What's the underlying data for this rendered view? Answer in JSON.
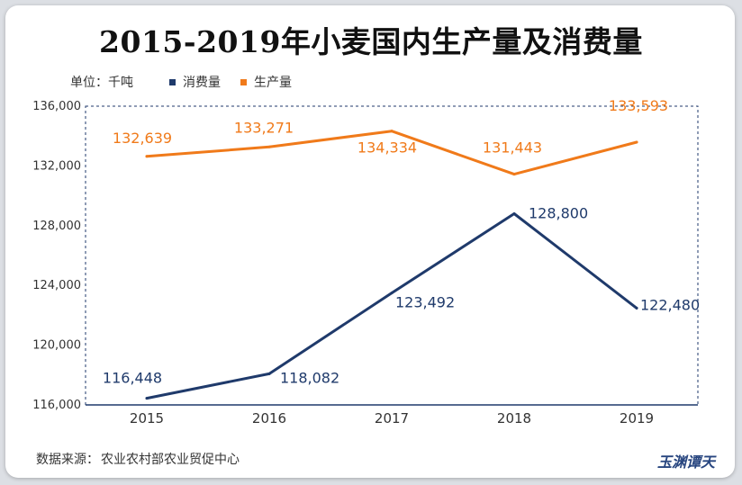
{
  "title": "2015-2019年小麦国内生产量及消费量",
  "legend": {
    "unit": "单位：千吨",
    "items": [
      {
        "label": "消费量",
        "color": "#1f3a6b"
      },
      {
        "label": "生产量",
        "color": "#f07a1a"
      }
    ]
  },
  "source": {
    "label": "数据来源：",
    "text": "农业农村部农业贸促中心"
  },
  "watermark": "玉渊谭天",
  "chart_data": {
    "type": "line",
    "x": [
      "2015",
      "2016",
      "2017",
      "2018",
      "2019"
    ],
    "ylim": [
      116000,
      136000
    ],
    "yticks": [
      116000,
      120000,
      124000,
      128000,
      132000,
      136000
    ],
    "ytick_labels": [
      "116,000",
      "120,000",
      "124,000",
      "128,000",
      "132,000",
      "136,000"
    ],
    "grid": false,
    "series": [
      {
        "name": "生产量",
        "color": "#f07a1a",
        "values": [
          132639,
          133271,
          134334,
          131443,
          133593
        ],
        "labels": [
          "132,639",
          "133,271",
          "134,334",
          "131,443",
          "133,593"
        ]
      },
      {
        "name": "消费量",
        "color": "#1f3a6b",
        "values": [
          116448,
          118082,
          123492,
          128800,
          122480
        ],
        "labels": [
          "116,448",
          "118,082",
          "123,492",
          "128,800",
          "122,480"
        ]
      }
    ]
  }
}
